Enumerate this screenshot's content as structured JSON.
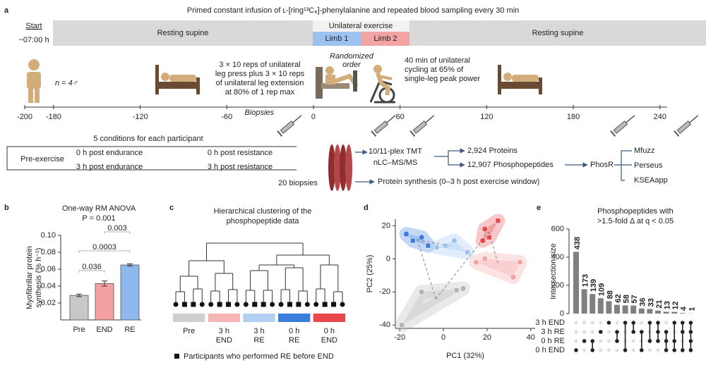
{
  "panel_a": {
    "label": "a",
    "title": "Primed constant infusion of ʟ-[ring¹³C₆]-phenylalanine and repeated blood sampling every 30 min",
    "start": "Start",
    "start_time": "~07:00 h",
    "phases": {
      "rest_before": "Resting supine",
      "exercise": "Unilateral exercise",
      "limb1": "Limb 1",
      "limb2": "Limb 2",
      "rest_after": "Resting supine"
    },
    "participants": "n = 4♂",
    "randomized": [
      "Randomized",
      "order"
    ],
    "resistance": [
      "3 × 10 reps of unilateral",
      "leg press plus 3 × 10 reps",
      "of unilateral leg extension",
      "at 80% of 1 rep max"
    ],
    "endurance": [
      "40 min of unilateral",
      "cycling at 65% of",
      "single-leg peak power"
    ],
    "biopsies": "Biopsies",
    "timeline_lim": [
      -200,
      245
    ],
    "timeline_ticks": [
      -200,
      -180,
      -120,
      -60,
      0,
      60,
      120,
      180,
      240
    ],
    "conditions_title": "5 conditions for each participant",
    "conditions": [
      "Pre-exercise",
      "0 h post endurance",
      "3 h post endurance",
      "0 h post resistance",
      "3 h post resistance"
    ],
    "biopsy_count": "20 biopsies",
    "workflow": {
      "tmt": [
        "10/11-plex TMT",
        "nLC–MS/MS"
      ],
      "proteins": "2,924 Proteins",
      "phospho": "12,907 Phosphopeptides",
      "phosr": "PhosR",
      "tools": [
        "Mfuzz",
        "Perseus",
        "KSEAapp"
      ],
      "synthesis": "Protein synthesis (0–3 h post exercise window)"
    }
  },
  "panel_c": {
    "label": "c",
    "title": [
      "Hierarchical clustering of the",
      "phosphopeptide data"
    ],
    "groups": [
      {
        "name": [
          "Pre"
        ],
        "color": "#cfcfcf"
      },
      {
        "name": [
          "3 h",
          "END"
        ],
        "color": "#f7b5b5"
      },
      {
        "name": [
          "3 h",
          "RE"
        ],
        "color": "#b3cff2"
      },
      {
        "name": [
          "0 h",
          "RE"
        ],
        "color": "#3b7ddd"
      },
      {
        "name": [
          "0 h",
          "END"
        ],
        "color": "#e8474c"
      }
    ],
    "legend": "Participants who performed RE before END"
  },
  "chart_data": [
    {
      "type": "bar",
      "label": "b",
      "title": "One-way RM ANOVA",
      "subtitle": "P = 0.001",
      "ylabel": [
        "Myofibrillar protein",
        "synthesis (% h⁻¹)"
      ],
      "categories": [
        "Pre",
        "END",
        "RE"
      ],
      "values": [
        0.029,
        0.043,
        0.065
      ],
      "errors": [
        0.0015,
        0.003,
        0.0012
      ],
      "colors": [
        "#c8c8c8",
        "#f4a0a0",
        "#8fb8ee"
      ],
      "ylim": [
        0,
        0.1
      ],
      "yticks": [
        0.02,
        0.04,
        0.06,
        0.08,
        {
          "value": 0.1,
          "label": "0.10"
        }
      ],
      "annotations": [
        "0.003",
        "0.0003",
        "0.036"
      ]
    },
    {
      "type": "scatter",
      "label": "d",
      "xlabel": "PC1 (32%)",
      "ylabel": "PC2 (25%)",
      "xlim": [
        -22,
        42
      ],
      "ylim": [
        -42,
        24
      ],
      "xticks": [
        -20,
        0,
        20,
        40
      ],
      "yticks": [
        -40,
        -20,
        0,
        20
      ],
      "series": [
        {
          "color": "#b5b5b5",
          "x": [
            -10,
            -19,
            9,
            6
          ],
          "values": [
            -20,
            -40,
            -18,
            -19
          ]
        },
        {
          "color": "#3b7ddd",
          "x": [
            -17,
            -14,
            -10,
            -7
          ],
          "values": [
            15,
            11,
            13,
            8
          ]
        },
        {
          "color": "#9cc3f0",
          "x": [
            -3,
            1,
            5,
            11
          ],
          "values": [
            7,
            8,
            11,
            4
          ]
        },
        {
          "color": "#e8474c",
          "x": [
            19,
            25,
            18,
            21
          ],
          "values": [
            18,
            23,
            11,
            13
          ]
        },
        {
          "color": "#f4a3a3",
          "x": [
            15,
            19,
            32,
            35
          ],
          "values": [
            -2,
            0,
            -11,
            -2
          ]
        }
      ]
    },
    {
      "type": "upset",
      "label": "e",
      "title": [
        "Phosphopeptides with",
        ">1.5-fold Δ at q < 0.05"
      ],
      "ylabel": "Intersection size",
      "values": [
        438,
        173,
        139,
        109,
        88,
        62,
        58,
        57,
        36,
        33,
        21,
        13,
        12,
        4,
        1
      ],
      "color": "#808080",
      "ylim": [
        0,
        600
      ],
      "yticks": [
        0,
        200,
        400,
        600
      ],
      "sets": [
        "3 h END",
        "3 h RE",
        "0 h RE",
        "0 h END"
      ],
      "intersections": [
        [
          3
        ],
        [
          2
        ],
        [
          2,
          3
        ],
        [
          1
        ],
        [
          0
        ],
        [
          1,
          2
        ],
        [
          0,
          3
        ],
        [
          0,
          1
        ],
        [
          1,
          3
        ],
        [
          0,
          2
        ],
        [
          0,
          1,
          2
        ],
        [
          1,
          2,
          3
        ],
        [
          0,
          2,
          3
        ],
        [
          0,
          1,
          3
        ],
        [
          0,
          1,
          2,
          3
        ]
      ]
    }
  ]
}
